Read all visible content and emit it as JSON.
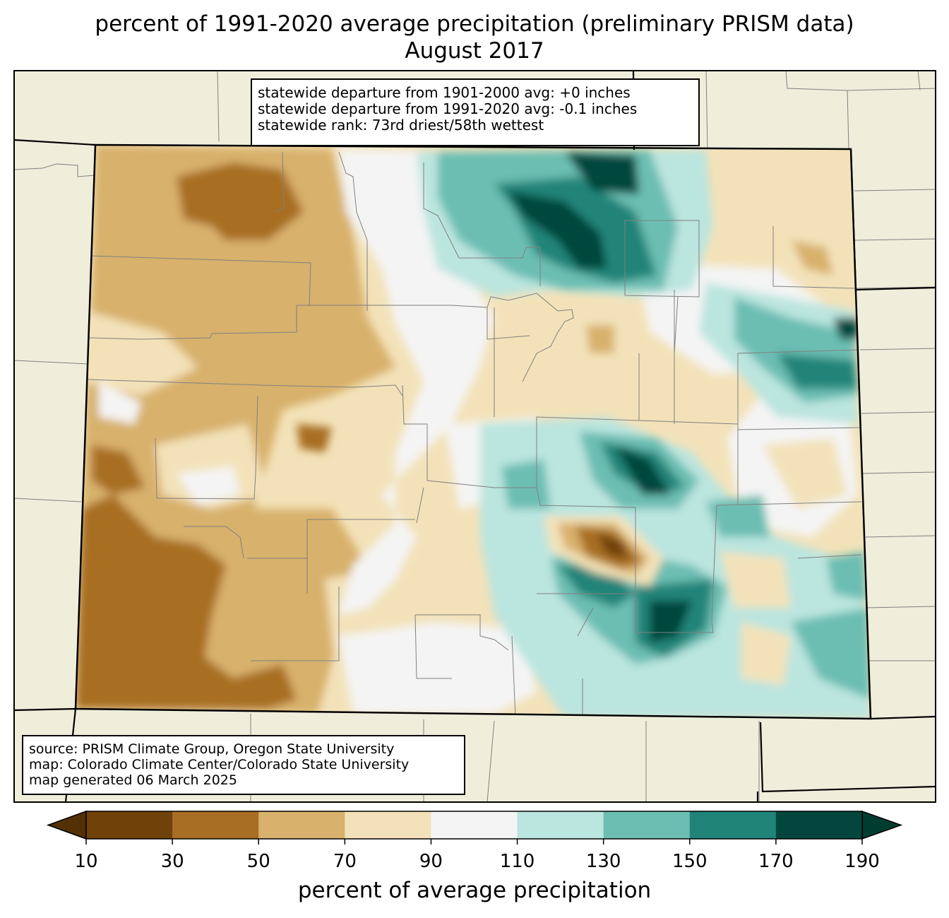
{
  "title": {
    "line1": "percent of 1991-2020 average precipitation (preliminary PRISM data)",
    "line2": "August 2017"
  },
  "stats": {
    "line1": "statewide departure from 1901-2000 avg: +0 inches",
    "line2": "statewide departure from 1991-2020 avg: -0.1 inches",
    "line3": "statewide rank: 73rd driest/58th wettest"
  },
  "source": {
    "line1": "source: PRISM Climate Group, Oregon State University",
    "line2": "map: Colorado Climate Center/Colorado State University",
    "line3": "map generated 06 March 2025"
  },
  "colorbar": {
    "label": "percent of average precipitation",
    "ticks": [
      "10",
      "30",
      "50",
      "70",
      "90",
      "110",
      "130",
      "150",
      "170",
      "190"
    ],
    "colors": [
      "#704109",
      "#a86e23",
      "#d8b16c",
      "#f3e2b9",
      "#f4f4f4",
      "#bbe5df",
      "#6cbeb2",
      "#218479",
      "#03463d"
    ],
    "under_color": "#543005",
    "over_color": "#003c30"
  },
  "colors": {
    "land_background": "#efeedb",
    "state_border": "#000000",
    "county_border": "#808080"
  }
}
